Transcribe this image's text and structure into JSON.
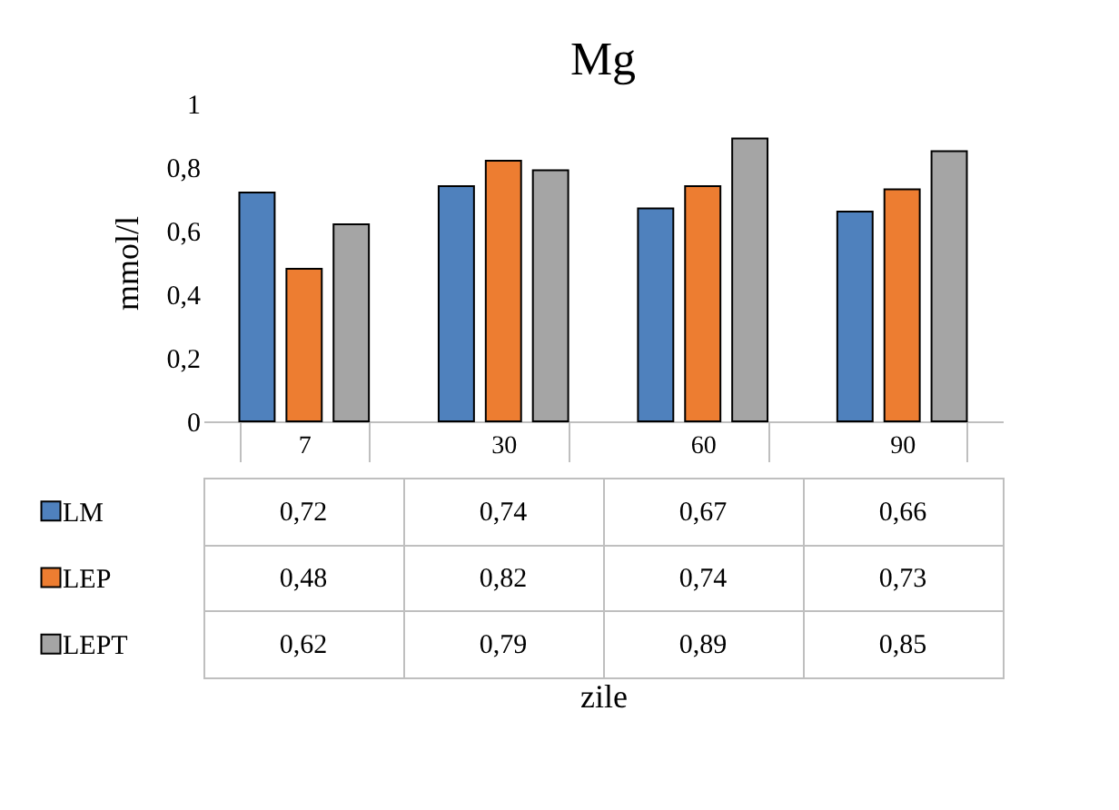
{
  "chart_data": {
    "type": "bar",
    "title": "Mg",
    "annotations": [
      "zile"
    ],
    "ylabel": "mmol/l",
    "categories": [
      "7",
      "30",
      "60",
      "90"
    ],
    "series": [
      {
        "name": "LM",
        "color": "#4f81bd",
        "values": [
          0.72,
          0.74,
          0.67,
          0.66
        ],
        "value_labels": [
          "0,72",
          "0,74",
          "0,67",
          "0,66"
        ]
      },
      {
        "name": "LEP",
        "color": "#ed7d31",
        "values": [
          0.48,
          0.82,
          0.74,
          0.73
        ],
        "value_labels": [
          "0,48",
          "0,82",
          "0,74",
          "0,73"
        ]
      },
      {
        "name": "LEPT",
        "color": "#a5a5a5",
        "values": [
          0.62,
          0.79,
          0.89,
          0.85
        ],
        "value_labels": [
          "0,62",
          "0,79",
          "0,89",
          "0,85"
        ]
      }
    ],
    "ylim": [
      0,
      1
    ],
    "yticks": [
      0,
      {
        "value": 0.2,
        "label": "0,2"
      },
      {
        "value": 0.4,
        "label": "0,4"
      },
      {
        "value": 0.6,
        "label": "0,6"
      },
      {
        "value": 0.8,
        "label": "0,8"
      },
      1
    ],
    "grid": false,
    "legend": "bottom"
  }
}
